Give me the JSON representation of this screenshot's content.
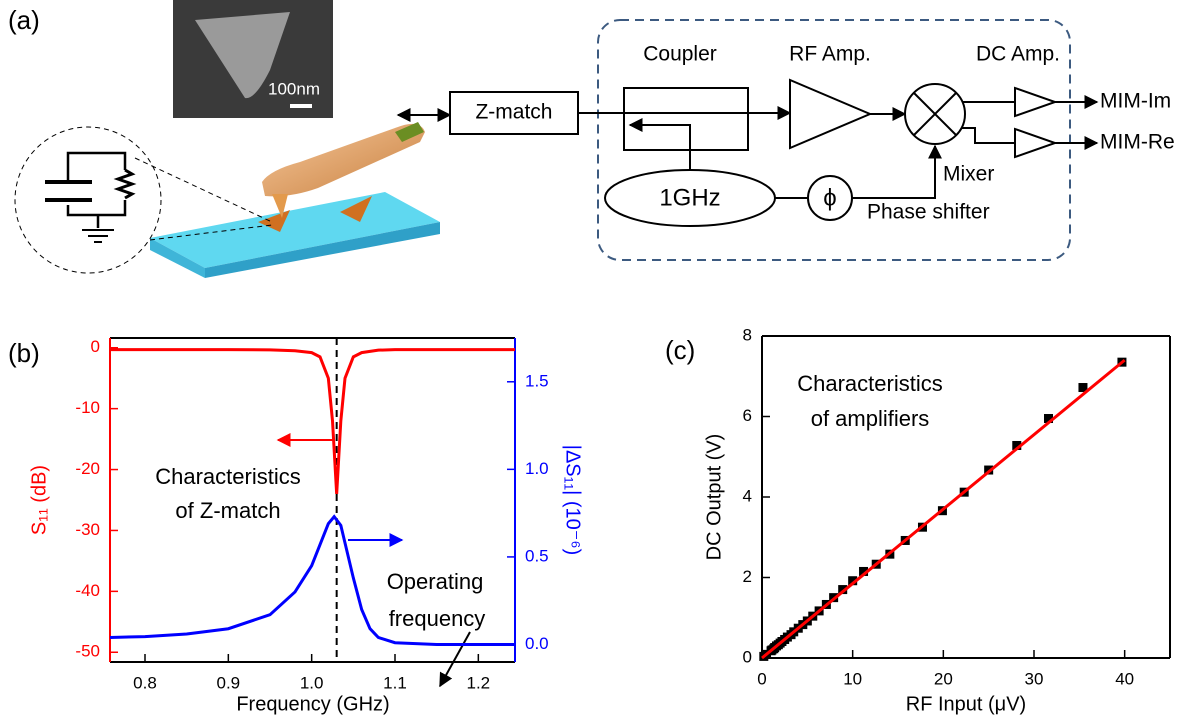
{
  "panel_a": {
    "label": "(a)",
    "scale_bar": "100nm",
    "blocks": {
      "z_match": "Z-match",
      "coupler": "Coupler",
      "rf_amp": "RF Amp.",
      "dc_amp": "DC Amp.",
      "oscillator": "1GHz",
      "phase_symbol": "ϕ",
      "phase_shifter": "Phase shifter",
      "mixer": "Mixer"
    },
    "outputs": [
      "MIM-Im",
      "MIM-Re"
    ]
  },
  "panel_b": "(b)",
  "panel_c": "(c)",
  "chart_data": [
    {
      "type": "line",
      "xlabel": "Frequency (GHz)",
      "ylabel": "S₁₁ (dB)",
      "y2label": "|ΔS₁₁| (10⁻⁶)",
      "xlim": [
        0.758,
        1.244
      ],
      "xticks": [
        0.8,
        0.9,
        {
          "value": 1,
          "label": "1.0"
        },
        1.1,
        1.2
      ],
      "ylim": [
        -51.6,
        1.6
      ],
      "yticks": [
        0,
        -10,
        -20,
        -30,
        -40,
        -50
      ],
      "y2lim": [
        -0.1,
        1.75
      ],
      "y2ticks": [
        {
          "value": 0,
          "label": "0.0"
        },
        0.5,
        {
          "value": 1,
          "label": "1.0"
        },
        1.5
      ],
      "vline": 1.03,
      "annotations": [
        "Characteristics",
        "of Z-match",
        "Operating",
        "frequency"
      ],
      "series": [
        {
          "color": "#ff0000",
          "x": [
            0.758,
            0.8,
            0.85,
            0.9,
            0.95,
            0.98,
            1.0,
            1.01,
            1.02,
            1.025,
            1.03,
            1.035,
            1.04,
            1.05,
            1.06,
            1.08,
            1.1,
            1.15,
            1.2,
            1.244
          ],
          "values": [
            -0.3,
            -0.3,
            -0.3,
            -0.3,
            -0.35,
            -0.5,
            -0.8,
            -1.5,
            -5,
            -12,
            -24,
            -12,
            -5,
            -1.5,
            -0.8,
            -0.4,
            -0.3,
            -0.3,
            -0.3,
            -0.3
          ]
        },
        {
          "color": "#0000ff",
          "axis": "y2",
          "x": [
            0.758,
            0.8,
            0.85,
            0.9,
            0.95,
            0.98,
            1.0,
            1.01,
            1.02,
            1.027,
            1.035,
            1.04,
            1.05,
            1.06,
            1.07,
            1.08,
            1.1,
            1.15,
            1.2,
            1.244
          ],
          "values": [
            0.04,
            0.045,
            0.06,
            0.09,
            0.17,
            0.3,
            0.45,
            0.57,
            0.69,
            0.73,
            0.68,
            0.58,
            0.38,
            0.2,
            0.09,
            0.04,
            0.01,
            0,
            0,
            0
          ]
        }
      ]
    },
    {
      "type": "scatter",
      "xlabel": "RF Input (μV)",
      "ylabel": "DC Output (V)",
      "xlim": [
        0,
        45
      ],
      "xticks": [
        0,
        10,
        20,
        30,
        40
      ],
      "ylim": [
        0,
        8
      ],
      "yticks": [
        0,
        2,
        4,
        6,
        8
      ],
      "annotations": [
        "Characteristics",
        "of amplifiers"
      ],
      "series": [
        {
          "color": "#000000",
          "x": [
            39.7,
            35.4,
            31.6,
            28.1,
            25,
            22.3,
            19.9,
            17.7,
            15.8,
            14.1,
            12.6,
            11.2,
            10,
            8.9,
            7.9,
            7.1,
            6.3,
            5.6,
            5,
            4.5,
            4,
            3.5,
            3.2,
            2.8,
            2.5,
            2.2,
            2,
            1.8,
            1.6,
            1.4,
            1.3,
            1.1,
            1,
            0.5,
            0.2
          ],
          "values": [
            7.35,
            6.72,
            5.95,
            5.28,
            4.67,
            4.12,
            3.66,
            3.25,
            2.92,
            2.58,
            2.33,
            2.15,
            1.92,
            1.7,
            1.5,
            1.33,
            1.17,
            1.04,
            0.92,
            0.83,
            0.74,
            0.65,
            0.58,
            0.52,
            0.46,
            0.41,
            0.37,
            0.33,
            0.3,
            0.26,
            0.23,
            0.2,
            0.18,
            0.09,
            0.04
          ]
        },
        {
          "type": "line",
          "color": "#ff0000",
          "x": [
            0,
            40
          ],
          "values": [
            0,
            7.4
          ]
        }
      ]
    }
  ]
}
